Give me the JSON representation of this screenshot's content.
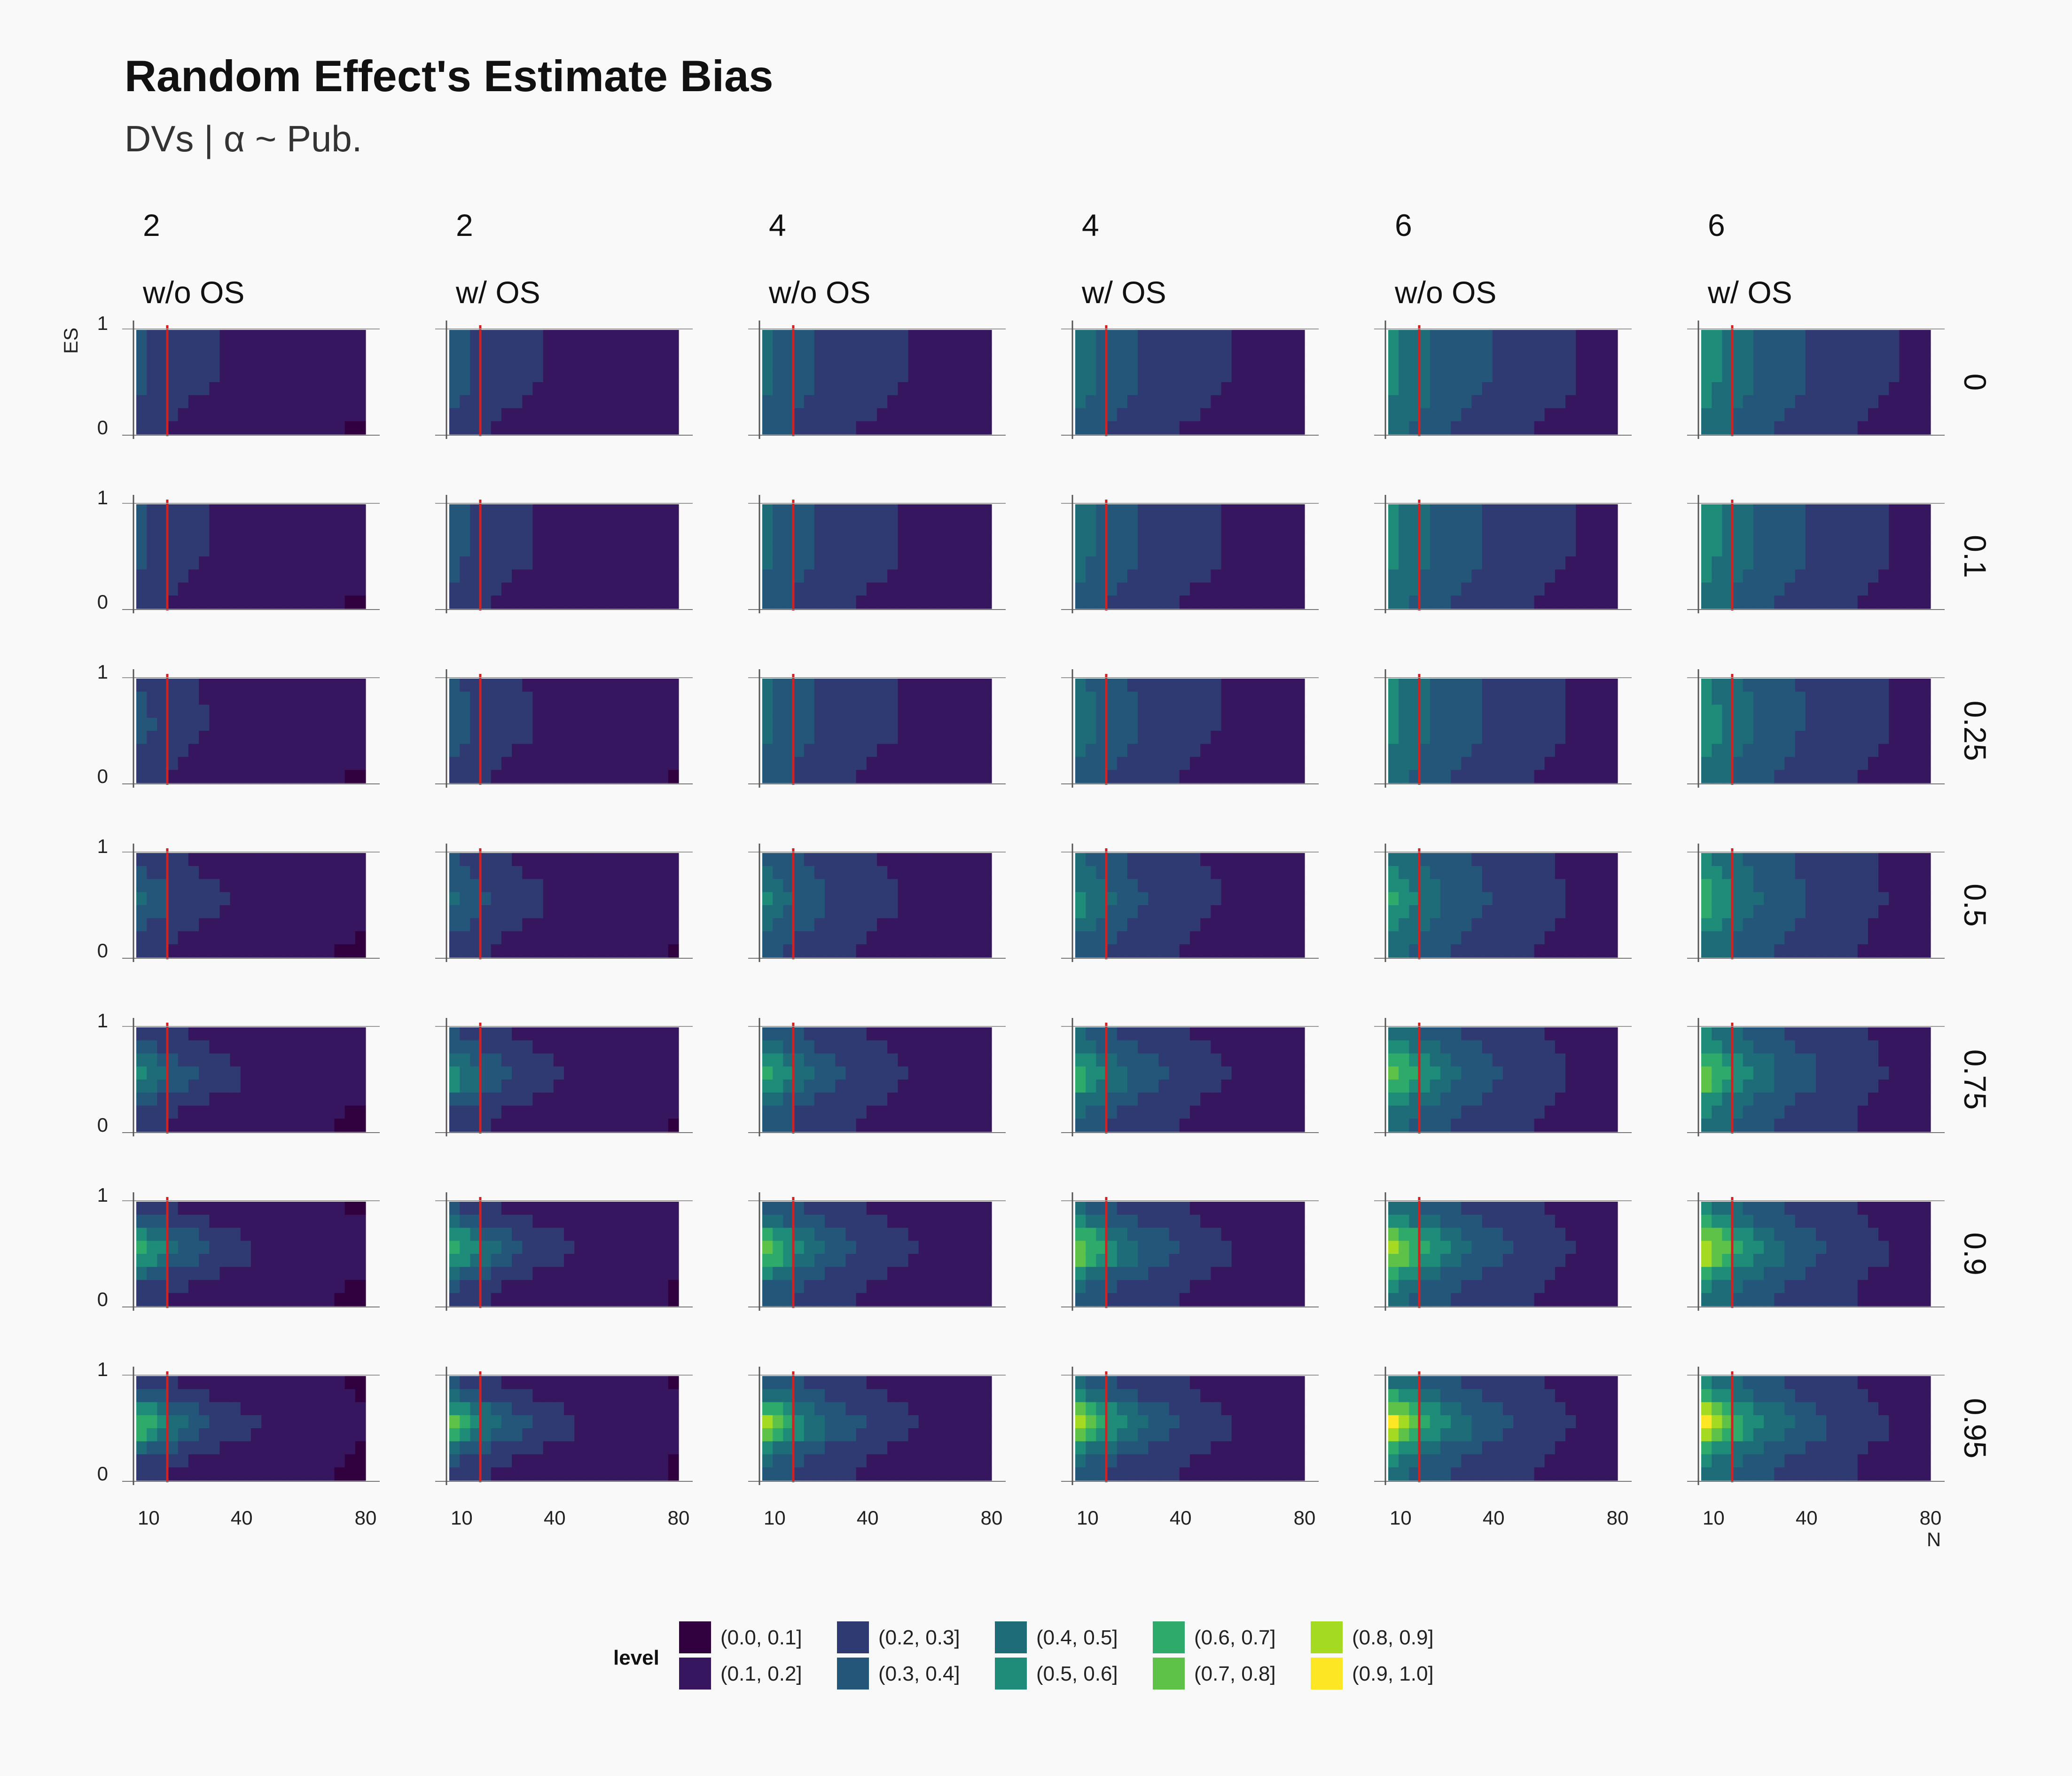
{
  "title": "Random Effect's Estimate Bias",
  "subtitle": "DVs | α ~ Pub.",
  "chart_data": {
    "type": "heatmap",
    "description_axes": {
      "xlabel": "N",
      "ylabel": "ES"
    },
    "x_ticks": [
      10,
      40,
      80
    ],
    "y_ticks": [
      0,
      1
    ],
    "xlim": [
      6,
      80
    ],
    "ylim": [
      0,
      1
    ],
    "vline_x": 16,
    "vline_color": "#d42020",
    "col_strips_top": [
      "2",
      "2",
      "4",
      "4",
      "6",
      "6"
    ],
    "col_strips_bottom": [
      "w/o OS",
      "w/ OS",
      "w/o OS",
      "w/ OS",
      "w/o OS",
      "w/ OS"
    ],
    "row_strips": [
      "0",
      "0.1",
      "0.25",
      "0.5",
      "0.75",
      "0.9",
      "0.95"
    ],
    "dv_values": [
      2,
      2,
      4,
      4,
      6,
      6
    ],
    "outlier_screening": [
      false,
      true,
      false,
      true,
      false,
      true
    ],
    "alpha_values": [
      0,
      0.1,
      0.25,
      0.5,
      0.75,
      0.9,
      0.95
    ],
    "legend_title": "level",
    "levels": [
      "(0.0, 0.1]",
      "(0.1, 0.2]",
      "(0.2, 0.3]",
      "(0.3, 0.4]",
      "(0.4, 0.5]",
      "(0.5, 0.6]",
      "(0.6, 0.7]",
      "(0.7, 0.8]",
      "(0.8, 0.9]",
      "(0.9, 1.0]"
    ],
    "level_colors": [
      "#30003f",
      "#371660",
      "#2f3a73",
      "#24567a",
      "#1e6c78",
      "#1f8c7a",
      "#2eaa6a",
      "#5ec248",
      "#a4da22",
      "#fde725"
    ],
    "legend_layout": "bottom, 2 rows x 5 columns"
  }
}
